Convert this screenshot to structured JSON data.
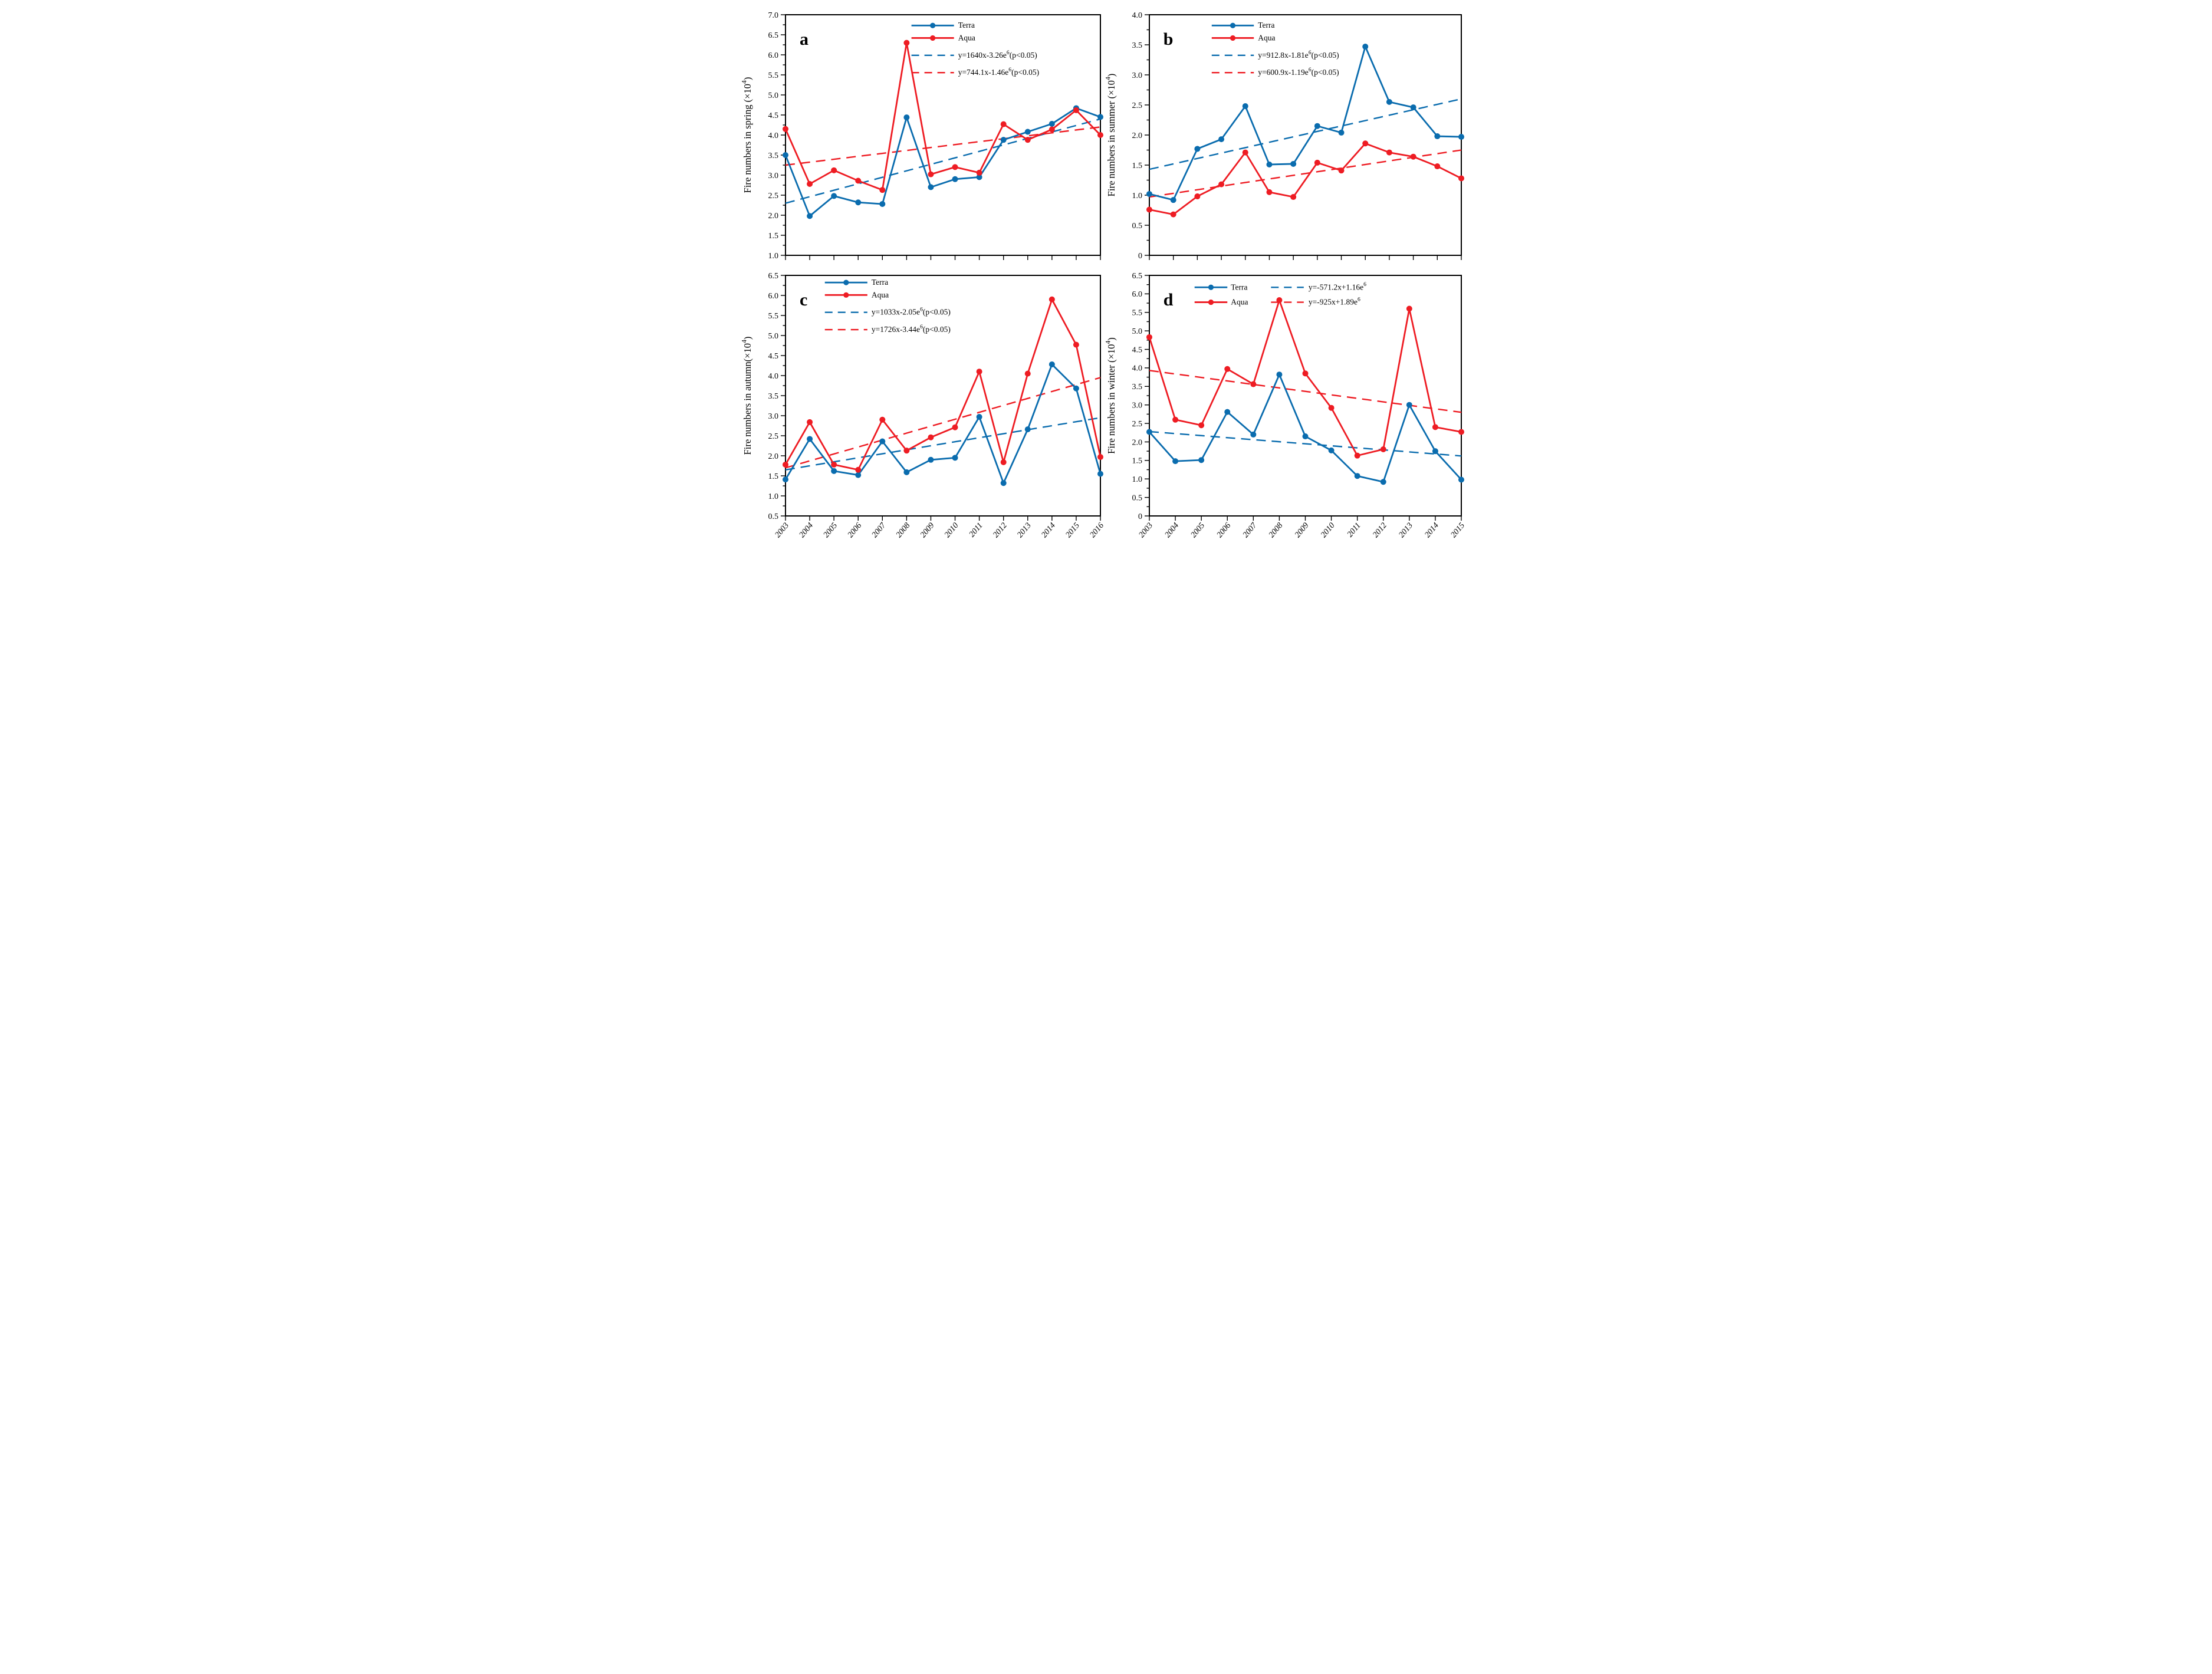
{
  "colors": {
    "terra": "#0a6cae",
    "aqua": "#ee1c23",
    "axis": "#000000",
    "text": "#000000"
  },
  "series_names": {
    "terra": "Terra",
    "aqua": "Aqua"
  },
  "chart_data": [
    {
      "id": "a",
      "type": "line",
      "panel_label": "a",
      "ylabel": "Fire numbers in spring (×10^4)",
      "ylim": [
        1.0,
        7.0
      ],
      "ytick_step": 0.5,
      "ytick_minor_step": 0.25,
      "x": [
        2003,
        2004,
        2005,
        2006,
        2007,
        2008,
        2009,
        2010,
        2011,
        2012,
        2013,
        2014,
        2015,
        2016
      ],
      "xtick_labels_visible": false,
      "grid": false,
      "series": [
        {
          "name": "Terra",
          "color": "terra",
          "values": [
            3.5,
            1.98,
            2.48,
            2.32,
            2.28,
            4.44,
            2.7,
            2.9,
            2.95,
            3.88,
            4.08,
            4.28,
            4.67,
            4.45
          ]
        },
        {
          "name": "Aqua",
          "color": "aqua",
          "values": [
            4.15,
            2.78,
            3.12,
            2.86,
            2.63,
            6.3,
            3.02,
            3.2,
            3.06,
            4.27,
            3.88,
            4.14,
            4.62,
            4.0
          ]
        }
      ],
      "trendlines": [
        {
          "series": "Terra",
          "color": "terra",
          "equation": "y=1640x-3.26e^6(p<0.05)",
          "y_start": 2.3,
          "y_end": 4.4
        },
        {
          "series": "Aqua",
          "color": "aqua",
          "equation": "y=744.1x-1.46e^6(p<0.05)",
          "y_start": 3.25,
          "y_end": 4.2
        }
      ],
      "legend": {
        "layout": "stack",
        "x": 0.4,
        "y": 0.03
      }
    },
    {
      "id": "b",
      "type": "line",
      "panel_label": "b",
      "ylabel": "Fire numbers in summer (×10^4)",
      "ylim": [
        0,
        4.0
      ],
      "ytick_step": 0.5,
      "ytick_minor_step": 0.25,
      "x": [
        2003,
        2004,
        2005,
        2006,
        2007,
        2008,
        2009,
        2010,
        2011,
        2012,
        2013,
        2014,
        2015,
        2016
      ],
      "xtick_labels_visible": false,
      "grid": false,
      "series": [
        {
          "name": "Terra",
          "color": "terra",
          "values": [
            1.02,
            0.92,
            1.77,
            1.93,
            2.48,
            1.51,
            1.52,
            2.15,
            2.04,
            3.47,
            2.55,
            2.46,
            1.98,
            1.97
          ]
        },
        {
          "name": "Aqua",
          "color": "aqua",
          "values": [
            0.76,
            0.68,
            0.98,
            1.18,
            1.71,
            1.05,
            0.97,
            1.54,
            1.41,
            1.86,
            1.71,
            1.64,
            1.48,
            1.28
          ]
        }
      ],
      "trendlines": [
        {
          "series": "Terra",
          "color": "terra",
          "equation": "y=912.8x-1.81e^6(p<0.05)",
          "y_start": 1.43,
          "y_end": 2.6
        },
        {
          "series": "Aqua",
          "color": "aqua",
          "equation": "y=600.9x-1.19e^6(p<0.05)",
          "y_start": 0.97,
          "y_end": 1.75
        }
      ],
      "legend": {
        "layout": "stack",
        "x": 0.2,
        "y": 0.03
      }
    },
    {
      "id": "c",
      "type": "line",
      "panel_label": "c",
      "ylabel": "Fire numbers in autumn(×10^4)",
      "ylim": [
        0.5,
        6.5
      ],
      "ytick_step": 0.5,
      "ytick_minor_step": 0.25,
      "x": [
        2003,
        2004,
        2005,
        2006,
        2007,
        2008,
        2009,
        2010,
        2011,
        2012,
        2013,
        2014,
        2015,
        2016
      ],
      "xtick_labels_visible": true,
      "grid": false,
      "series": [
        {
          "name": "Terra",
          "color": "terra",
          "values": [
            1.41,
            2.42,
            1.62,
            1.52,
            2.36,
            1.59,
            1.9,
            1.95,
            2.97,
            1.32,
            2.66,
            4.28,
            3.68,
            1.55
          ]
        },
        {
          "name": "Aqua",
          "color": "aqua",
          "values": [
            1.78,
            2.84,
            1.78,
            1.65,
            2.9,
            2.13,
            2.46,
            2.71,
            4.1,
            1.84,
            4.05,
            5.9,
            4.77,
            1.97
          ]
        }
      ],
      "trendlines": [
        {
          "series": "Terra",
          "color": "terra",
          "equation": "y=1033x-2.05e^6(p<0.05)",
          "y_start": 1.65,
          "y_end": 2.95
        },
        {
          "series": "Aqua",
          "color": "aqua",
          "equation": "y=1726x-3.44e^6(p<0.05)",
          "y_start": 1.7,
          "y_end": 3.95
        }
      ],
      "legend": {
        "layout": "stack",
        "x": 0.125,
        "y": 0.015
      }
    },
    {
      "id": "d",
      "type": "line",
      "panel_label": "d",
      "ylabel": "Fire numbers in winter (×10^4)",
      "ylim": [
        0,
        6.5
      ],
      "ytick_step": 0.5,
      "ytick_minor_step": 0.25,
      "x": [
        2003,
        2004,
        2005,
        2006,
        2007,
        2008,
        2009,
        2010,
        2011,
        2012,
        2013,
        2014,
        2015
      ],
      "xtick_labels_visible": true,
      "grid": false,
      "series": [
        {
          "name": "Terra",
          "color": "terra",
          "values": [
            2.27,
            1.48,
            1.51,
            2.81,
            2.2,
            3.82,
            2.15,
            1.77,
            1.08,
            0.92,
            3.0,
            1.75,
            0.98
          ]
        },
        {
          "name": "Aqua",
          "color": "aqua",
          "values": [
            4.83,
            2.6,
            2.45,
            3.97,
            3.56,
            5.83,
            3.85,
            2.92,
            1.63,
            1.8,
            5.6,
            2.4,
            2.27
          ]
        }
      ],
      "trendlines": [
        {
          "series": "Terra",
          "color": "terra",
          "equation": "y=-571.2x+1.16e^6",
          "y_start": 2.28,
          "y_end": 1.62
        },
        {
          "series": "Aqua",
          "color": "aqua",
          "equation": "y=-925x+1.89e^6",
          "y_start": 3.93,
          "y_end": 2.8
        }
      ],
      "legend": {
        "layout": "two-col",
        "x": 0.145,
        "y": 0.035
      }
    }
  ]
}
